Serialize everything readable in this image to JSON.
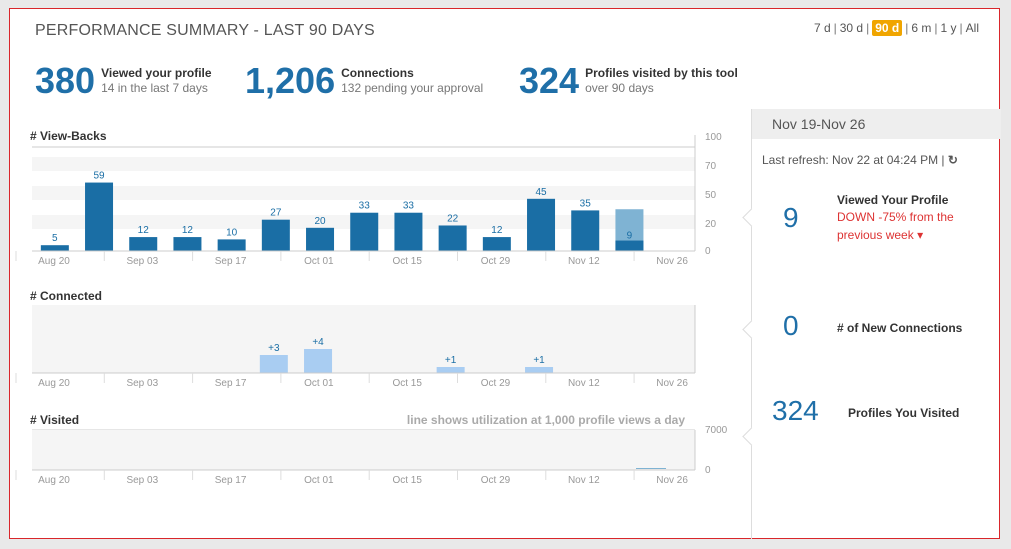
{
  "header": {
    "title": "PERFORMANCE SUMMARY - LAST 90 DAYS"
  },
  "range": {
    "options": [
      "7 d",
      "30 d",
      "90 d",
      "6 m",
      "1 y",
      "All"
    ],
    "active": "90 d"
  },
  "stats": [
    {
      "value": "380",
      "label": "Viewed your profile",
      "sub": "14 in the last 7 days"
    },
    {
      "value": "1,206",
      "label": "Connections",
      "sub": "132 pending your approval"
    },
    {
      "value": "324",
      "label": "Profiles visited by this tool",
      "sub": "over 90 days"
    }
  ],
  "sidebar": {
    "period": "Nov 19-Nov 26",
    "refresh": "Last refresh: Nov 22 at 04:24 PM |",
    "viewed": {
      "value": "9",
      "label": "Viewed Your Profile",
      "change": "DOWN -75% from the previous week"
    },
    "connections": {
      "value": "0",
      "label": "# of New Connections"
    },
    "visited": {
      "value": "324",
      "label": "Profiles You Visited"
    }
  },
  "charts": {
    "x_labels": [
      "Aug 20",
      "Sep 03",
      "Sep 17",
      "Oct 01",
      "Oct 15",
      "Oct 29",
      "Nov 12",
      "Nov 26"
    ],
    "viewbacks": {
      "title": "# View-Backs",
      "yticks": [
        "100",
        "70",
        "50",
        "20",
        "0"
      ]
    },
    "connected": {
      "title": "# Connected"
    },
    "visited": {
      "title": "# Visited",
      "note": "line shows utilization at 1,000 profile views a day",
      "yticks": [
        "7000",
        "0"
      ]
    }
  },
  "chart_data": [
    {
      "type": "bar",
      "title": "# View-Backs",
      "values": [
        5,
        59,
        12,
        12,
        10,
        27,
        20,
        33,
        33,
        22,
        12,
        45,
        35,
        9
      ],
      "ylim": [
        0,
        100
      ],
      "highlight": {
        "index": 13,
        "value": 9,
        "previous_week": 36
      },
      "colors": {
        "bar": "#1a6ea5",
        "highlight": "#7fb3d3"
      }
    },
    {
      "type": "bar",
      "title": "# Connected",
      "labels": [
        "+3",
        "+4",
        "+1",
        "+1"
      ],
      "values": [
        3,
        4,
        1,
        1
      ],
      "week_index": [
        5,
        6,
        9,
        11
      ],
      "colors": {
        "bar": "#a9cdf2"
      }
    },
    {
      "type": "bar",
      "title": "# Visited",
      "ylim": [
        0,
        7000
      ],
      "note": "line shows utilization at 1,000 profile views a day"
    }
  ]
}
